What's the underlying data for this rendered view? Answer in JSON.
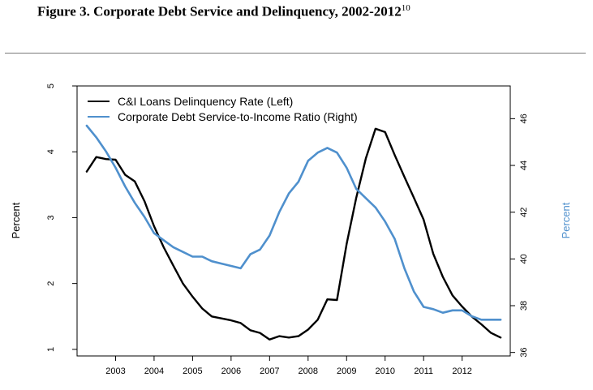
{
  "title": {
    "text": "Figure 3. Corporate Debt Service and Delinquency, 2002-2012",
    "footnote": "10"
  },
  "colors": {
    "left_series": "#000000",
    "right_series": "#4f90cd"
  },
  "chart_data": {
    "type": "line",
    "title": "Figure 3. Corporate Debt Service and Delinquency, 2002-2012",
    "x_ticks": [
      "2003",
      "2004",
      "2005",
      "2006",
      "2007",
      "2008",
      "2009",
      "2010",
      "2011",
      "2012"
    ],
    "xlim": [
      2002.0,
      2013.25
    ],
    "left_axis": {
      "label": "Percent",
      "ylim": [
        0.9,
        5.0
      ],
      "ticks": [
        "1",
        "2",
        "3",
        "4",
        "5"
      ]
    },
    "right_axis": {
      "label": "Percent",
      "ylim": [
        35.85,
        47.4
      ],
      "ticks": [
        "36",
        "38",
        "40",
        "42",
        "44",
        "46"
      ]
    },
    "legend_position": "top-left",
    "grid": false,
    "series": [
      {
        "name": "C&I Loans Delinquency Rate (Left)",
        "axis": "left",
        "color": "#000000",
        "x": [
          2002.25,
          2002.5,
          2002.75,
          2003.0,
          2003.25,
          2003.5,
          2003.75,
          2004.0,
          2004.25,
          2004.5,
          2004.75,
          2005.0,
          2005.25,
          2005.5,
          2005.75,
          2006.0,
          2006.25,
          2006.5,
          2006.75,
          2007.0,
          2007.25,
          2007.5,
          2007.75,
          2008.0,
          2008.25,
          2008.5,
          2008.75,
          2009.0,
          2009.25,
          2009.5,
          2009.75,
          2010.0,
          2010.25,
          2010.5,
          2010.75,
          2011.0,
          2011.25,
          2011.5,
          2011.75,
          2012.0,
          2012.25,
          2012.5,
          2012.75,
          2013.0
        ],
        "values": [
          3.7,
          3.92,
          3.89,
          3.88,
          3.65,
          3.55,
          3.25,
          2.87,
          2.55,
          2.27,
          2.0,
          1.8,
          1.62,
          1.5,
          1.47,
          1.44,
          1.4,
          1.29,
          1.25,
          1.15,
          1.2,
          1.18,
          1.2,
          1.3,
          1.45,
          1.76,
          1.75,
          2.6,
          3.3,
          3.9,
          4.35,
          4.3,
          3.95,
          3.62,
          3.3,
          2.97,
          2.45,
          2.1,
          1.82,
          1.65,
          1.5,
          1.38,
          1.25,
          1.18
        ]
      },
      {
        "name": "Corporate Debt Service-to-Income Ratio (Right)",
        "axis": "right",
        "color": "#4f90cd",
        "x": [
          2002.25,
          2002.5,
          2002.75,
          2003.0,
          2003.25,
          2003.5,
          2003.75,
          2004.0,
          2004.25,
          2004.5,
          2004.75,
          2005.0,
          2005.25,
          2005.5,
          2005.75,
          2006.0,
          2006.25,
          2006.5,
          2006.75,
          2007.0,
          2007.25,
          2007.5,
          2007.75,
          2008.0,
          2008.25,
          2008.5,
          2008.75,
          2009.0,
          2009.25,
          2009.5,
          2009.75,
          2010.0,
          2010.25,
          2010.5,
          2010.75,
          2011.0,
          2011.25,
          2011.5,
          2011.75,
          2012.0,
          2012.25,
          2012.5,
          2012.75,
          2013.0
        ],
        "values": [
          45.7,
          45.2,
          44.6,
          43.9,
          43.1,
          42.4,
          41.8,
          41.1,
          40.8,
          40.5,
          40.3,
          40.1,
          40.1,
          39.9,
          39.8,
          39.7,
          39.6,
          40.2,
          40.4,
          41.0,
          42.0,
          42.8,
          43.3,
          44.2,
          44.55,
          44.75,
          44.55,
          43.9,
          43.0,
          42.6,
          42.2,
          41.6,
          40.85,
          39.6,
          38.6,
          37.95,
          37.85,
          37.7,
          37.8,
          37.8,
          37.55,
          37.4,
          37.4,
          37.4
        ]
      }
    ]
  }
}
